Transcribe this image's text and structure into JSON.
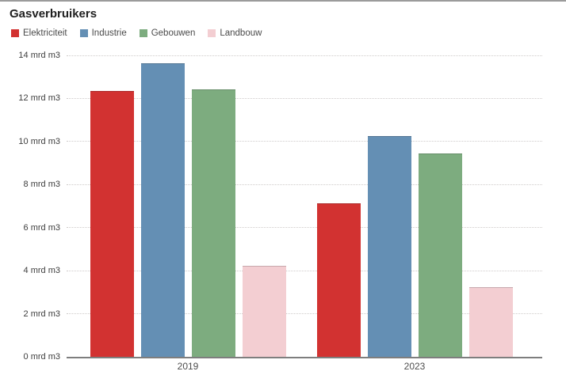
{
  "title": "Gasverbruikers",
  "legend": [
    {
      "label": "Elektriciteit",
      "color": "#d23231"
    },
    {
      "label": "Industrie",
      "color": "#648fb4"
    },
    {
      "label": "Gebouwen",
      "color": "#7dac7f"
    },
    {
      "label": "Landbouw",
      "color": "#f3ced2"
    }
  ],
  "y_axis": {
    "tick_values": [
      0,
      2,
      4,
      6,
      8,
      10,
      12,
      14
    ],
    "tick_labels": [
      "0 mrd m3",
      "2 mrd m3",
      "4 mrd m3",
      "6 mrd m3",
      "8 mrd m3",
      "10 mrd m3",
      "12 mrd m3",
      "14 mrd m3"
    ]
  },
  "chart_data": {
    "type": "bar",
    "title": "Gasverbruikers",
    "categories": [
      "2019",
      "2023"
    ],
    "series": [
      {
        "name": "Elektriciteit",
        "color": "#d23231",
        "values": [
          12.3,
          7.1
        ]
      },
      {
        "name": "Industrie",
        "color": "#648fb4",
        "values": [
          13.6,
          10.2
        ]
      },
      {
        "name": "Gebouwen",
        "color": "#7dac7f",
        "values": [
          12.4,
          9.4
        ]
      },
      {
        "name": "Landbouw",
        "color": "#f3ced2",
        "values": [
          4.2,
          3.2
        ]
      }
    ],
    "xlabel": "",
    "ylabel": "mrd m3",
    "ylim": [
      0,
      14
    ],
    "grid": "horizontal-dotted",
    "legend_position": "top-left"
  }
}
